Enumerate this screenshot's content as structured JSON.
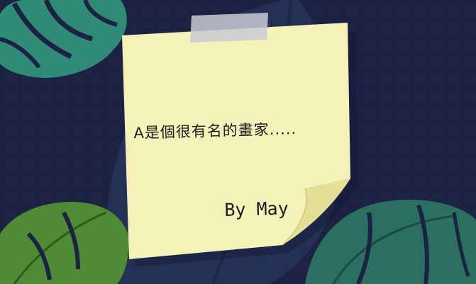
{
  "note": {
    "message": "A是個很有名的畫家.....",
    "signature": "By May"
  },
  "colors": {
    "background": "#1c2342",
    "note_paper": "#f4f2b9",
    "tape": "#c9cad2",
    "leaf_teal": "#2f8a78",
    "leaf_green": "#4f8a34"
  }
}
